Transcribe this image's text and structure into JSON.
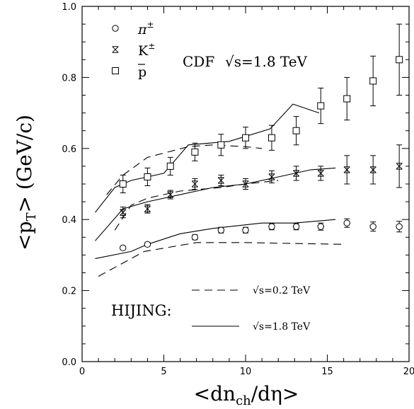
{
  "chart_data": {
    "type": "scatter",
    "xlabel": "<dn_ch/dη>",
    "ylabel": "<p_T> (GeV/c)",
    "xlim": [
      0,
      20
    ],
    "ylim": [
      0.0,
      1.0
    ],
    "x_ticks": [
      "0",
      "5",
      "10",
      "15",
      "20"
    ],
    "y_ticks": [
      "0.0",
      "0.2",
      "0.4",
      "0.6",
      "0.8",
      "1.0"
    ],
    "grid": false,
    "title_text": "CDF",
    "energy_text": "√s=1.8 TeV",
    "legend": {
      "placement": "top-left",
      "entries": [
        {
          "symbol": "circle",
          "label": "π±"
        },
        {
          "symbol": "star",
          "label": "K±"
        },
        {
          "symbol": "square",
          "label": "p̄"
        }
      ]
    },
    "model_label": "HIJING:",
    "model_legend": [
      {
        "style": "dashed",
        "label": "√s=0.2 TeV"
      },
      {
        "style": "solid",
        "label": "√s=1.8 TeV"
      }
    ],
    "series": [
      {
        "name": "π±",
        "marker": "circle",
        "x": [
          2.5,
          4.0,
          6.9,
          8.5,
          10.0,
          11.6,
          13.1,
          14.6,
          16.2,
          17.8,
          19.4
        ],
        "y": [
          0.32,
          0.33,
          0.35,
          0.37,
          0.37,
          0.38,
          0.38,
          0.38,
          0.39,
          0.38,
          0.38
        ],
        "err": [
          0.005,
          0.005,
          0.007,
          0.008,
          0.008,
          0.009,
          0.009,
          0.01,
          0.012,
          0.013,
          0.015
        ]
      },
      {
        "name": "K±",
        "marker": "star",
        "x": [
          2.5,
          4.0,
          5.4,
          6.9,
          8.5,
          10.0,
          11.6,
          13.1,
          14.6,
          16.2,
          17.8,
          19.4
        ],
        "y": [
          0.42,
          0.43,
          0.47,
          0.5,
          0.51,
          0.5,
          0.52,
          0.53,
          0.53,
          0.54,
          0.54,
          0.55
        ],
        "err": [
          0.015,
          0.012,
          0.012,
          0.015,
          0.015,
          0.015,
          0.017,
          0.02,
          0.02,
          0.04,
          0.04,
          0.06
        ]
      },
      {
        "name": "p̄",
        "marker": "square",
        "x": [
          2.5,
          4.0,
          5.4,
          6.9,
          8.5,
          10.0,
          11.6,
          13.1,
          14.6,
          16.2,
          17.8,
          19.4
        ],
        "y": [
          0.5,
          0.52,
          0.55,
          0.59,
          0.61,
          0.63,
          0.63,
          0.65,
          0.72,
          0.74,
          0.79,
          0.85
        ],
        "err": [
          0.025,
          0.025,
          0.025,
          0.025,
          0.03,
          0.03,
          0.035,
          0.04,
          0.05,
          0.06,
          0.07,
          0.1
        ]
      }
    ],
    "curves": [
      {
        "model": "HIJING √s=0.2 TeV",
        "style": "dashed",
        "particle": "π",
        "x": [
          1.0,
          3.8,
          7.0,
          10.0,
          16.0
        ],
        "y": [
          0.24,
          0.31,
          0.335,
          0.335,
          0.33
        ]
      },
      {
        "model": "HIJING √s=0.2 TeV",
        "style": "dashed",
        "particle": "K",
        "x": [
          2.0,
          3.0,
          4.0,
          6.0,
          8.5,
          10.0,
          12.0
        ],
        "y": [
          0.37,
          0.44,
          0.46,
          0.48,
          0.49,
          0.5,
          0.51
        ]
      },
      {
        "model": "HIJING √s=0.2 TeV",
        "style": "dashed",
        "particle": "p̄",
        "x": [
          1.5,
          2.5,
          4.0,
          6.5,
          8.0,
          10.0,
          11.0
        ],
        "y": [
          0.47,
          0.525,
          0.575,
          0.605,
          0.61,
          0.605,
          0.6
        ]
      },
      {
        "model": "HIJING √s=1.8 TeV",
        "style": "solid",
        "particle": "π",
        "x": [
          0.8,
          3.0,
          4.0,
          6.0,
          8.0,
          11.0,
          13.0,
          15.5
        ],
        "y": [
          0.29,
          0.31,
          0.33,
          0.36,
          0.375,
          0.39,
          0.39,
          0.4
        ]
      },
      {
        "model": "HIJING √s=1.8 TeV",
        "style": "solid",
        "particle": "K",
        "x": [
          0.8,
          2.5,
          4.0,
          6.0,
          8.0,
          10.0,
          12.0,
          14.0,
          15.5
        ],
        "y": [
          0.34,
          0.43,
          0.45,
          0.47,
          0.49,
          0.5,
          0.52,
          0.54,
          0.545
        ]
      },
      {
        "model": "HIJING √s=1.8 TeV",
        "style": "solid",
        "particle": "p̄",
        "x": [
          0.8,
          2.0,
          3.0,
          5.0,
          6.5,
          9.0,
          11.5,
          12.9,
          14.5
        ],
        "y": [
          0.42,
          0.49,
          0.51,
          0.53,
          0.61,
          0.62,
          0.655,
          0.725,
          0.7
        ]
      }
    ]
  }
}
